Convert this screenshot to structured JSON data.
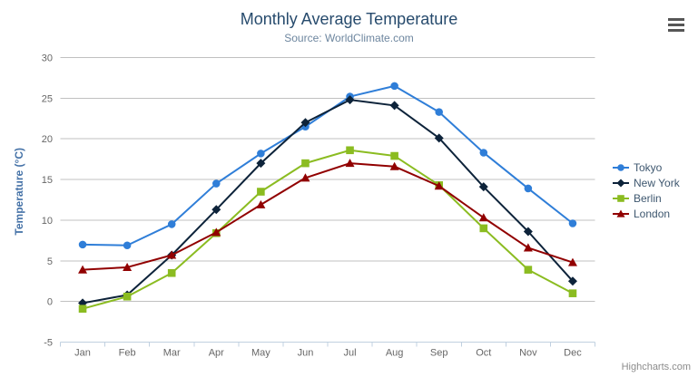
{
  "header": {
    "title": "Monthly Average Temperature",
    "subtitle": "Source: WorldClimate.com"
  },
  "credits_label": "Highcharts.com",
  "menu_icon": "hamburger-menu-icon",
  "colors": {
    "title_text": "#274b6d",
    "subtitle_text": "#6D869F",
    "axis_title_text": "#4572A7",
    "tick_label_text": "#666666",
    "gridline": "#C0C0C0",
    "axis_line": "#C0D0E0",
    "legend_text": "#3E576F",
    "credits_text": "#8c8c8c",
    "menu_icon_bars": "#565656"
  },
  "chart_data": {
    "type": "line",
    "title": "Monthly Average Temperature",
    "subtitle": "Source: WorldClimate.com",
    "xlabel": "",
    "ylabel": "Temperature (°C)",
    "ylim": [
      -5,
      30
    ],
    "ytick_interval": 5,
    "yticks": [
      -5,
      0,
      5,
      10,
      15,
      20,
      25,
      30
    ],
    "grid": true,
    "legend_position": "right",
    "categories": [
      "Jan",
      "Feb",
      "Mar",
      "Apr",
      "May",
      "Jun",
      "Jul",
      "Aug",
      "Sep",
      "Oct",
      "Nov",
      "Dec"
    ],
    "series": [
      {
        "name": "Tokyo",
        "color": "#2f7ed8",
        "marker": "circle",
        "values": [
          7.0,
          6.9,
          9.5,
          14.5,
          18.2,
          21.5,
          25.2,
          26.5,
          23.3,
          18.3,
          13.9,
          9.6
        ]
      },
      {
        "name": "New York",
        "color": "#0d233a",
        "marker": "diamond",
        "values": [
          -0.2,
          0.8,
          5.7,
          11.3,
          17.0,
          22.0,
          24.8,
          24.1,
          20.1,
          14.1,
          8.6,
          2.5
        ]
      },
      {
        "name": "Berlin",
        "color": "#8bbc21",
        "marker": "square",
        "values": [
          -0.9,
          0.6,
          3.5,
          8.4,
          13.5,
          17.0,
          18.6,
          17.9,
          14.3,
          9.0,
          3.9,
          1.0
        ]
      },
      {
        "name": "London",
        "color": "#910000",
        "marker": "triangle",
        "values": [
          3.9,
          4.2,
          5.7,
          8.5,
          11.9,
          15.2,
          17.0,
          16.6,
          14.2,
          10.3,
          6.6,
          4.8
        ]
      }
    ]
  }
}
